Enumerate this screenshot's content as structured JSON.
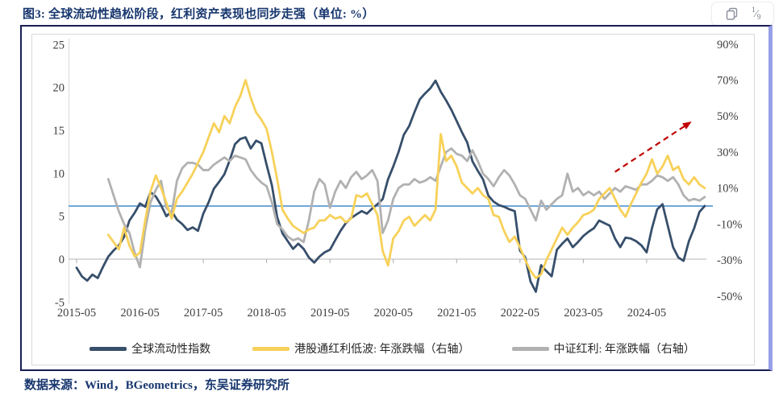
{
  "title": {
    "text": "图3:  全球流动性趋松阶段，红利资产表现也同步走强（单位: %）"
  },
  "toolbar": {
    "copy_icon": "copy-pages-icon",
    "page_indicator": {
      "numerator": "1",
      "denominator": "9"
    }
  },
  "footer": {
    "source_text": "数据来源：Wind，BGeometrics，东吴证券研究所"
  },
  "colors": {
    "title_navy": "#17366e",
    "frame_navy": "#181d52",
    "right_bar_periwinkle": "#97a0e8",
    "reference_blue": "#5b9bd5",
    "zero_line_gray": "#c3c3c3",
    "arrow_red": "#c00000"
  },
  "chart_data": {
    "type": "line",
    "title": "全球流动性趋松阶段，红利资产表现也同步走强",
    "unit": "%",
    "grid": "off",
    "legend_position": "bottom",
    "x_axis": {
      "unit": "month",
      "start": "2015-05",
      "end": "2025-04",
      "tick_labels": [
        "2015-05",
        "2016-05",
        "2017-05",
        "2018-05",
        "2019-05",
        "2020-05",
        "2021-05",
        "2022-05",
        "2023-05",
        "2024-05"
      ]
    },
    "left_axis": {
      "ticks": [
        25,
        20,
        15,
        10,
        5,
        0,
        -5
      ],
      "range": [
        -5,
        25
      ]
    },
    "right_axis": {
      "tick_labels": [
        "90%",
        "70%",
        "50%",
        "30%",
        "10%",
        "-10%",
        "-30%",
        "-50%"
      ],
      "tick_values": [
        90,
        70,
        50,
        30,
        10,
        -10,
        -30,
        -50
      ],
      "range": [
        -50,
        90
      ]
    },
    "reference_lines": {
      "blue_hline_right_pct": 0,
      "zero_line_left": 0
    },
    "series": [
      {
        "name": "全球流动性指数",
        "axis": "left",
        "color": "#374f6b",
        "start_month_index": 0,
        "values": [
          -1.0,
          -2.0,
          -2.5,
          -1.8,
          -2.2,
          -0.9,
          0.3,
          1.0,
          1.6,
          2.6,
          4.5,
          5.4,
          6.5,
          6.1,
          7.8,
          7.3,
          6.3,
          5.0,
          5.6,
          4.6,
          4.1,
          3.4,
          3.7,
          3.3,
          5.3,
          6.6,
          8.2,
          9.0,
          9.9,
          11.5,
          13.4,
          14.0,
          14.2,
          12.9,
          13.8,
          13.5,
          11.0,
          8.6,
          4.9,
          3.0,
          2.1,
          1.2,
          1.8,
          1.2,
          0.2,
          -0.4,
          0.3,
          0.8,
          1.1,
          2.2,
          3.3,
          4.2,
          4.8,
          5.2,
          5.6,
          5.3,
          5.9,
          6.4,
          7.0,
          9.3,
          10.8,
          12.5,
          14.5,
          15.5,
          17.1,
          18.6,
          19.3,
          19.9,
          20.8,
          19.5,
          18.5,
          17.4,
          16.1,
          14.8,
          13.6,
          11.4,
          10.3,
          9.3,
          7.4,
          6.7,
          6.3,
          6.1,
          5.8,
          5.6,
          1.0,
          0.2,
          -2.6,
          -3.8,
          -0.7,
          -1.4,
          -2.0,
          1.1,
          1.8,
          2.4,
          1.4,
          2.0,
          2.7,
          3.2,
          3.6,
          4.5,
          4.2,
          3.9,
          2.4,
          1.4,
          2.5,
          2.4,
          2.1,
          1.6,
          0.8,
          3.6,
          5.8,
          6.4,
          3.9,
          1.4,
          0.2,
          -0.2,
          2.1,
          3.6,
          5.5,
          6.2
        ]
      },
      {
        "name": "港股通红利低波: 年涨跌幅（右轴）",
        "axis": "right",
        "color": "#f7d159",
        "start_month_index": 6,
        "values": [
          -16,
          -20,
          -24,
          -12,
          -22,
          -28,
          -26,
          -8,
          8,
          17,
          10,
          2,
          -7,
          4,
          8,
          13,
          18,
          24,
          30,
          38,
          46,
          41,
          50,
          46,
          55,
          61,
          70,
          60,
          52,
          48,
          43,
          30,
          15,
          -2,
          -7,
          -11,
          -13,
          -15,
          -13,
          -12,
          -8,
          -8,
          -5,
          -7,
          -6,
          -9,
          -7,
          6,
          5,
          7,
          1,
          -5,
          -25,
          -33,
          -18,
          -14,
          -8,
          -6,
          -11,
          -8,
          -5,
          -8,
          -2,
          40,
          25,
          28,
          22,
          13,
          10,
          7,
          10,
          6,
          4,
          -5,
          -6,
          -14,
          -20,
          -17,
          -23,
          -30,
          -36,
          -40,
          -38,
          -30,
          -24,
          -18,
          -12,
          -16,
          -12,
          -9,
          -5,
          -4,
          -2,
          4,
          7,
          10,
          4,
          -2,
          -6,
          1,
          7,
          13,
          18,
          26,
          18,
          22,
          28,
          20,
          22,
          15,
          12,
          16,
          12,
          10
        ]
      },
      {
        "name": "中证红利: 年涨跌幅（右轴）",
        "axis": "right",
        "color": "#b1b1b1",
        "start_month_index": 6,
        "values": [
          15,
          6,
          -3,
          -10,
          -15,
          -26,
          -34,
          -13,
          2,
          9,
          14,
          -1,
          -4,
          14,
          21,
          24,
          24,
          23,
          20,
          20,
          23,
          25,
          27,
          25,
          28,
          27,
          26,
          20,
          16,
          13,
          11,
          2,
          -10,
          -13,
          -17,
          -19,
          -18,
          -20,
          -8,
          8,
          15,
          12,
          -1,
          8,
          14,
          10,
          16,
          19,
          15,
          17,
          20,
          14,
          -15,
          -8,
          4,
          10,
          12,
          12,
          15,
          13,
          14,
          16,
          14,
          22,
          30,
          32,
          29,
          28,
          25,
          31,
          25,
          18,
          15,
          11,
          16,
          20,
          17,
          12,
          6,
          4,
          -2,
          -8,
          3,
          -2,
          1,
          4,
          6,
          18,
          8,
          10,
          6,
          8,
          6,
          8,
          4,
          7,
          10,
          8,
          11,
          10,
          9,
          12,
          12,
          14,
          17,
          16,
          14,
          16,
          12,
          6,
          3,
          4,
          3,
          5
        ]
      }
    ],
    "annotations": {
      "trend_arrow": {
        "color": "#c00000",
        "style": "dashed",
        "x1_month_index": 102,
        "y1_right_pct": 19,
        "x2_month_index": 115.5,
        "y2_right_pct": 45
      }
    }
  }
}
